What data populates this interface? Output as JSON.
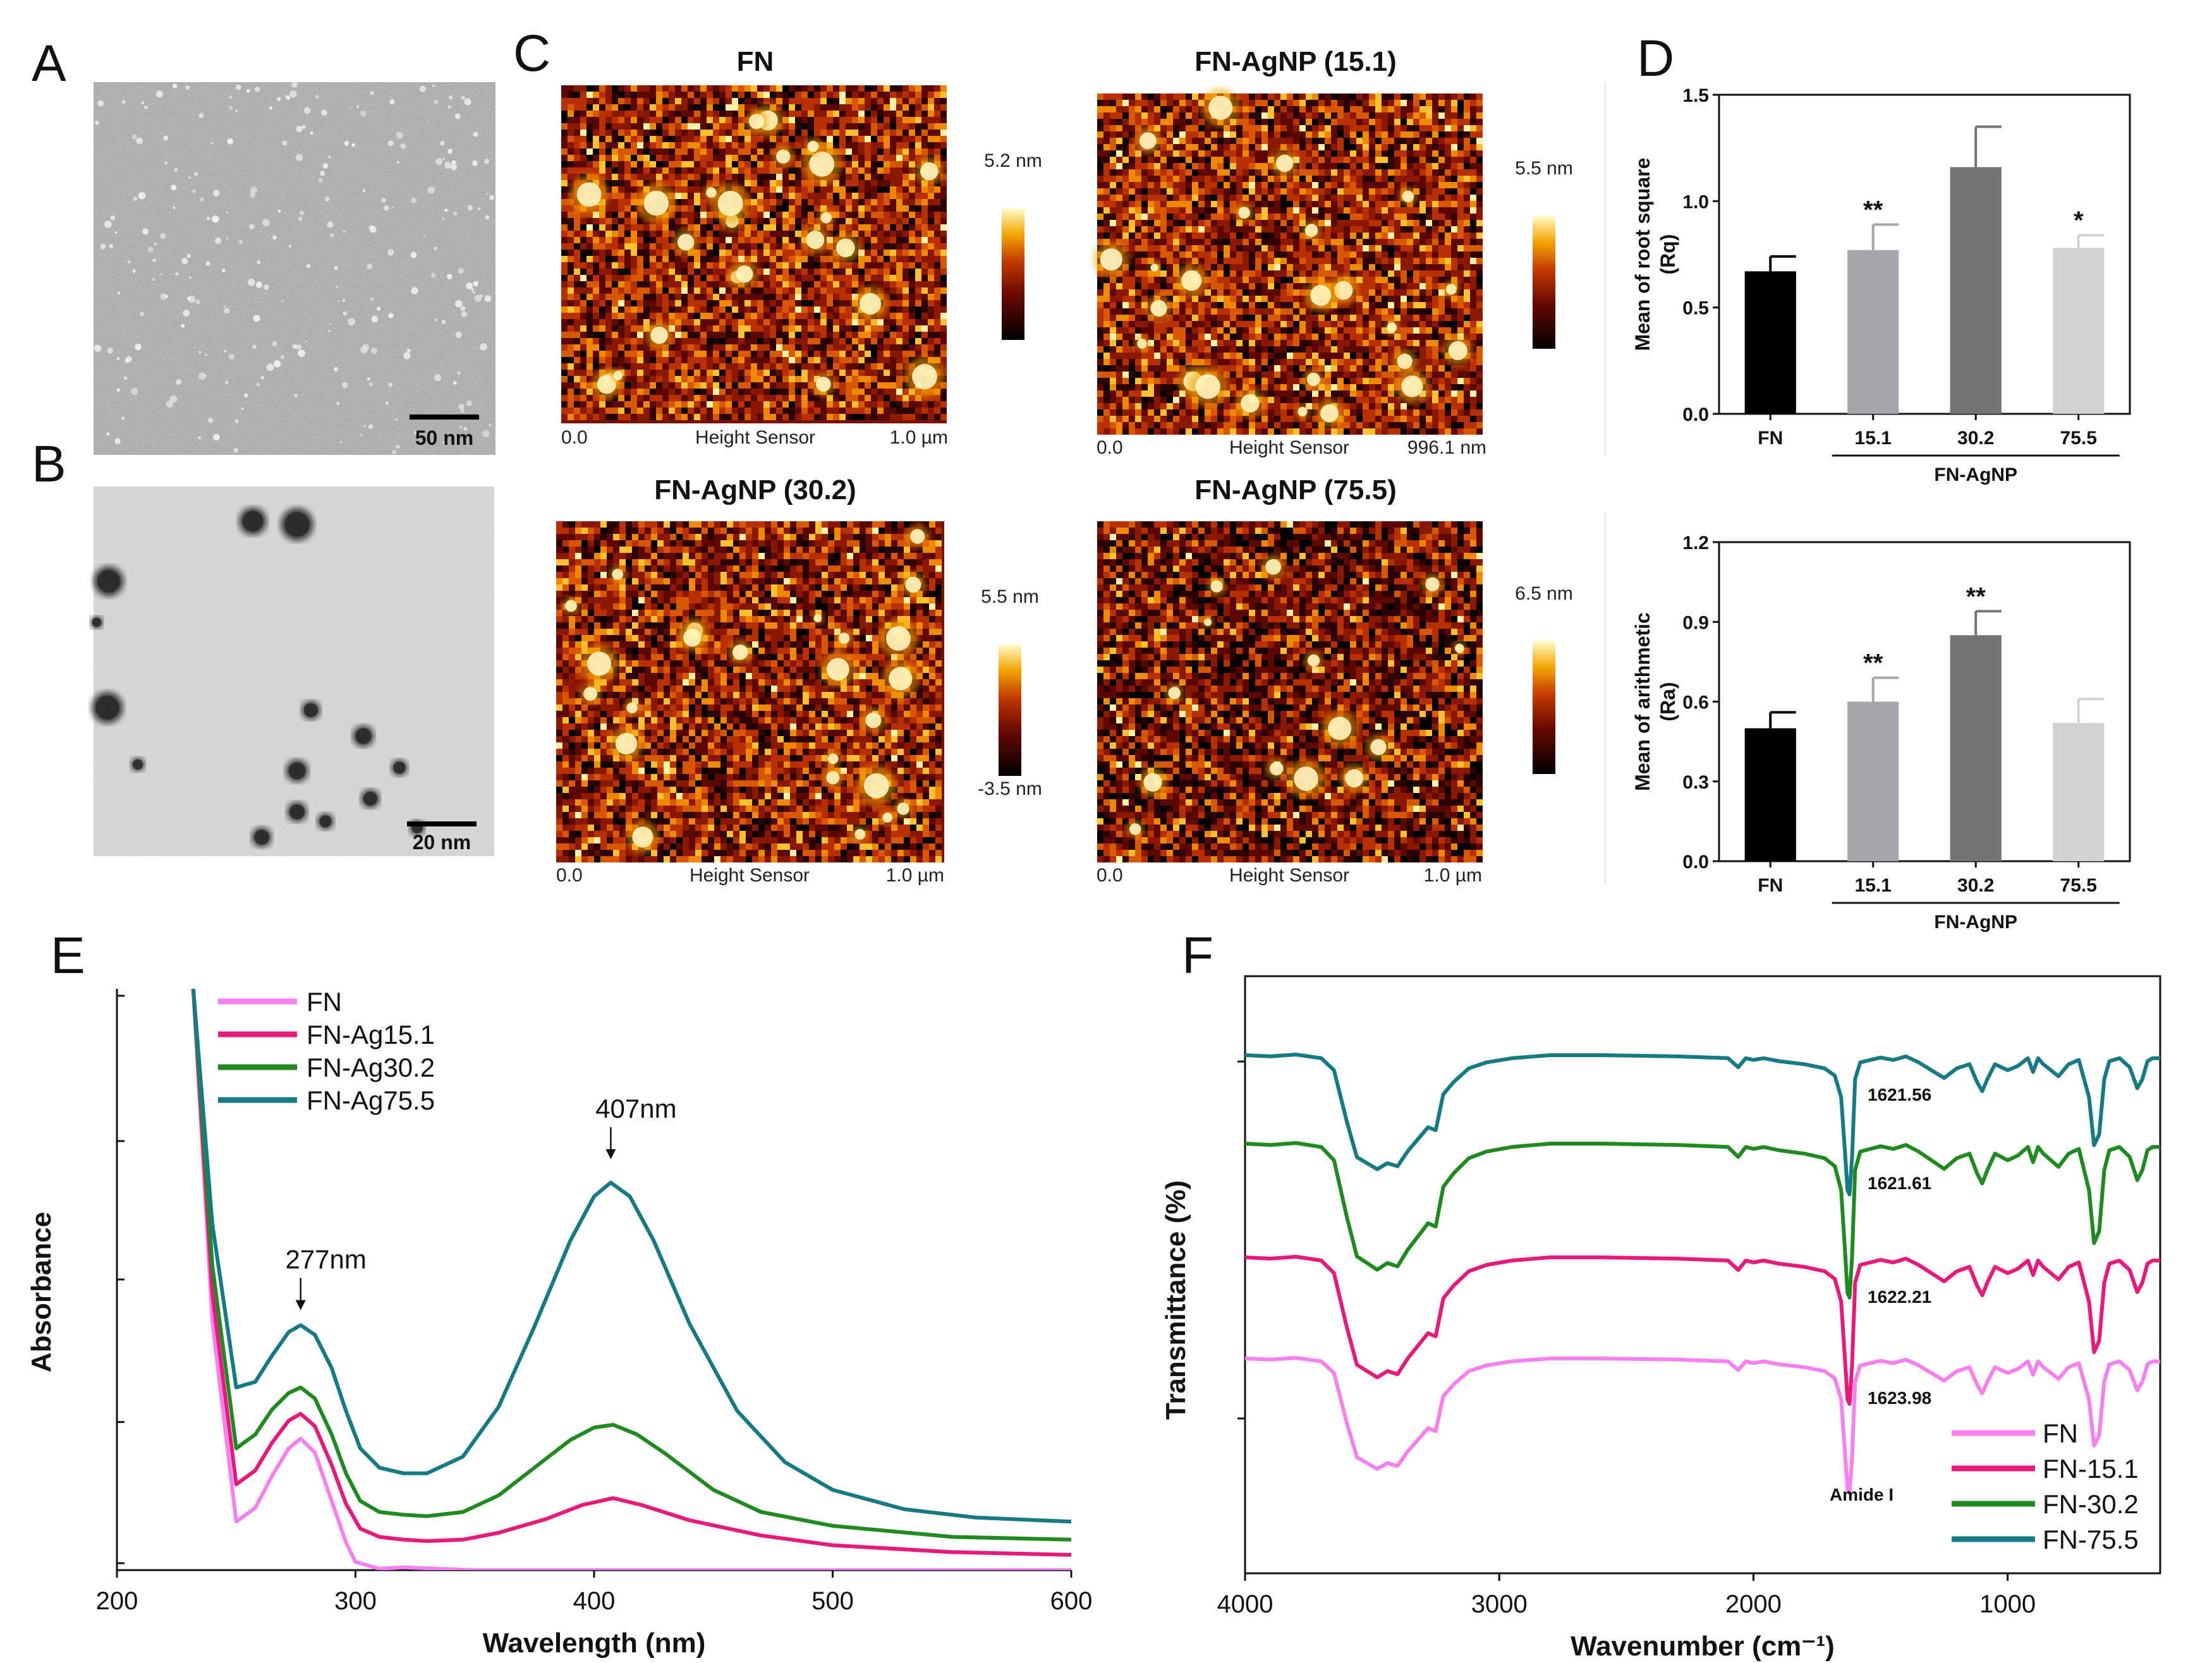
{
  "panels": {
    "A": {
      "label": "A",
      "scale_bar": "50 nm"
    },
    "B": {
      "label": "B",
      "scale_bar": "20 nm"
    },
    "C": {
      "label": "C",
      "images": [
        {
          "title": "FN",
          "scale_max": "5.2 nm",
          "scale_min": "",
          "foot_left": "0.0",
          "foot_mid": "Height Sensor",
          "foot_right": "1.0 µm"
        },
        {
          "title": "FN-AgNP (15.1)",
          "scale_max": "5.5 nm",
          "scale_min": "",
          "foot_left": "0.0",
          "foot_mid": "Height Sensor",
          "foot_right": "996.1 nm"
        },
        {
          "title": "FN-AgNP (30.2)",
          "scale_max": "5.5 nm",
          "scale_min": "-3.5 nm",
          "foot_left": "0.0",
          "foot_mid": "Height Sensor",
          "foot_right": "1.0 µm"
        },
        {
          "title": "FN-AgNP (75.5)",
          "scale_max": "6.5 nm",
          "scale_min": "",
          "foot_left": "0.0",
          "foot_mid": "Height Sensor",
          "foot_right": "1.0 µm"
        }
      ]
    },
    "D": {
      "label": "D"
    },
    "E": {
      "label": "E"
    },
    "F": {
      "label": "F"
    }
  },
  "chart_data": [
    {
      "id": "D-top",
      "type": "bar",
      "categories": [
        "FN",
        "15.1",
        "30.2",
        "75.5"
      ],
      "values": [
        0.67,
        0.77,
        1.16,
        0.78
      ],
      "errors": [
        0.07,
        0.12,
        0.19,
        0.06
      ],
      "significance": [
        "",
        "**",
        "",
        "*"
      ],
      "colors": [
        "#000000",
        "#a6a6ac",
        "#747474",
        "#d2d2d2"
      ],
      "ylabel_line1": "Mean of root square",
      "ylabel_line2": "(Rq)",
      "group_label": "FN-AgNP",
      "ylim": [
        0,
        1.5
      ],
      "yticks": [
        "0.0",
        "0.5",
        "1.0",
        "1.5"
      ]
    },
    {
      "id": "D-bottom",
      "type": "bar",
      "categories": [
        "FN",
        "15.1",
        "30.2",
        "75.5"
      ],
      "values": [
        0.5,
        0.6,
        0.85,
        0.52
      ],
      "errors": [
        0.06,
        0.09,
        0.09,
        0.09
      ],
      "significance": [
        "",
        "**",
        "**",
        ""
      ],
      "colors": [
        "#000000",
        "#a6a6ac",
        "#747474",
        "#d2d2d2"
      ],
      "ylabel_line1": "Mean of arithmetic",
      "ylabel_line2": "(Ra)",
      "group_label": "FN-AgNP",
      "ylim": [
        0,
        1.2
      ],
      "yticks": [
        "0.0",
        "0.3",
        "0.6",
        "0.9",
        "1.2"
      ]
    },
    {
      "id": "E",
      "type": "line",
      "xlabel": "Wavelength (nm)",
      "ylabel": "Absorbance",
      "xlim": [
        200,
        600
      ],
      "xticks": [
        "200",
        "300",
        "400",
        "500",
        "600"
      ],
      "ylim": [
        0,
        4.2
      ],
      "annotations": [
        {
          "text": "277nm",
          "x": 277,
          "y": 1.86
        },
        {
          "text": "407nm",
          "x": 407,
          "y": 2.95
        }
      ],
      "series": [
        {
          "name": "FN",
          "color": "#f77ff0",
          "x": [
            232,
            240,
            250,
            258,
            265,
            272,
            277,
            283,
            290,
            296,
            300,
            310,
            320,
            350,
            400,
            450,
            500,
            550,
            600
          ],
          "y": [
            4.2,
            1.8,
            0.35,
            0.45,
            0.68,
            0.88,
            0.95,
            0.85,
            0.5,
            0.2,
            0.06,
            0.01,
            0.02,
            0.0,
            0.0,
            0.0,
            0.0,
            0.0,
            0.0
          ]
        },
        {
          "name": "FN-Ag15.1",
          "color": "#e8197a",
          "x": [
            232,
            240,
            250,
            258,
            265,
            272,
            277,
            283,
            290,
            296,
            302,
            310,
            320,
            330,
            345,
            360,
            380,
            395,
            408,
            420,
            440,
            470,
            500,
            550,
            600
          ],
          "y": [
            4.2,
            2.0,
            0.62,
            0.72,
            0.92,
            1.08,
            1.13,
            1.04,
            0.76,
            0.48,
            0.3,
            0.24,
            0.22,
            0.21,
            0.22,
            0.27,
            0.37,
            0.47,
            0.52,
            0.47,
            0.36,
            0.25,
            0.18,
            0.13,
            0.11
          ]
        },
        {
          "name": "FN-Ag30.2",
          "color": "#1f8a1f",
          "x": [
            232,
            240,
            250,
            258,
            265,
            272,
            277,
            283,
            290,
            296,
            302,
            310,
            320,
            330,
            345,
            360,
            375,
            390,
            400,
            408,
            418,
            430,
            450,
            470,
            500,
            550,
            600
          ],
          "y": [
            4.2,
            2.2,
            0.88,
            0.98,
            1.16,
            1.28,
            1.32,
            1.24,
            0.98,
            0.7,
            0.5,
            0.42,
            0.4,
            0.39,
            0.42,
            0.54,
            0.74,
            0.94,
            1.03,
            1.05,
            0.98,
            0.84,
            0.58,
            0.42,
            0.32,
            0.24,
            0.22
          ]
        },
        {
          "name": "FN-Ag75.5",
          "color": "#167a84",
          "x": [
            232,
            240,
            250,
            258,
            265,
            272,
            277,
            283,
            290,
            296,
            302,
            310,
            320,
            330,
            345,
            360,
            375,
            390,
            400,
            407,
            415,
            425,
            440,
            460,
            480,
            500,
            530,
            560,
            600
          ],
          "y": [
            4.2,
            2.5,
            1.32,
            1.36,
            1.55,
            1.72,
            1.77,
            1.7,
            1.46,
            1.15,
            0.88,
            0.74,
            0.7,
            0.7,
            0.82,
            1.18,
            1.76,
            2.38,
            2.7,
            2.8,
            2.7,
            2.38,
            1.78,
            1.15,
            0.78,
            0.58,
            0.44,
            0.38,
            0.35
          ]
        }
      ]
    },
    {
      "id": "F",
      "type": "line",
      "xlabel": "Wavenumber (cm⁻¹)",
      "ylabel": "Transmittance (%)",
      "xlim": [
        4000,
        400
      ],
      "xticks": [
        "4000",
        "3000",
        "2000",
        "1000"
      ],
      "amide_label": "Amide I",
      "series": [
        {
          "name": "FN",
          "color": "#f77ff0",
          "offset": 0,
          "peak_label": "1623.98"
        },
        {
          "name": "FN-15.1",
          "color": "#e8197a",
          "offset": 1,
          "peak_label": "1622.21"
        },
        {
          "name": "FN-30.2",
          "color": "#1f8a1f",
          "offset": 2,
          "peak_label": "1621.61"
        },
        {
          "name": "FN-75.5",
          "color": "#167a84",
          "offset": 3,
          "peak_label": "1621.56"
        }
      ],
      "shape": {
        "x": [
          4000,
          3900,
          3800,
          3700,
          3650,
          3600,
          3560,
          3520,
          3480,
          3440,
          3400,
          3360,
          3320,
          3280,
          3250,
          3220,
          3180,
          3120,
          3050,
          2950,
          2800,
          2600,
          2300,
          2100,
          2060,
          2030,
          2000,
          1960,
          1900,
          1800,
          1720,
          1680,
          1655,
          1640,
          1630,
          1622,
          1612,
          1600,
          1580,
          1540,
          1500,
          1450,
          1400,
          1350,
          1300,
          1250,
          1200,
          1150,
          1120,
          1100,
          1080,
          1050,
          1000,
          960,
          920,
          900,
          880,
          860,
          800,
          760,
          720,
          680,
          660,
          640,
          620,
          600,
          560,
          520,
          490,
          470,
          450,
          430,
          400
        ],
        "y": [
          0,
          -2,
          1,
          -5,
          -25,
          -110,
          -170,
          -180,
          -190,
          -180,
          -185,
          -160,
          -140,
          -120,
          -125,
          -65,
          -45,
          -22,
          -12,
          -5,
          0,
          0,
          -2,
          -5,
          -20,
          -5,
          -8,
          -5,
          -10,
          -15,
          -22,
          -34,
          -70,
          -160,
          -225,
          -232,
          -170,
          -40,
          -12,
          -8,
          -4,
          -8,
          -2,
          -12,
          -25,
          -38,
          -22,
          -15,
          -45,
          -60,
          -40,
          -15,
          -25,
          -18,
          -5,
          -28,
          -5,
          -15,
          -35,
          -15,
          -8,
          -70,
          -150,
          -132,
          -40,
          -10,
          -5,
          -20,
          -55,
          -40,
          -10,
          -5,
          -5
        ]
      }
    }
  ]
}
